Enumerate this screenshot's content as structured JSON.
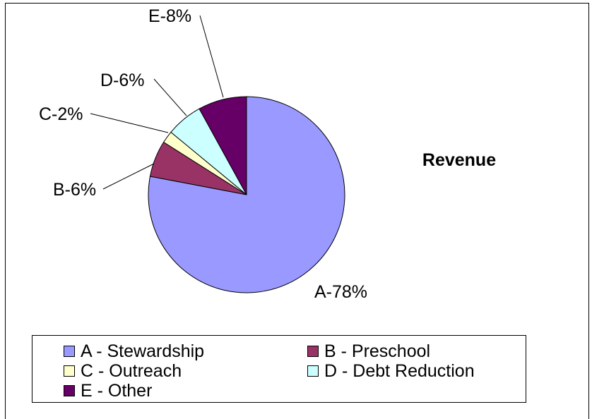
{
  "chart_data": {
    "type": "pie",
    "title": "Revenue",
    "slices": [
      {
        "key": "A",
        "label": "A-78%",
        "legend": "A - Stewardship",
        "value": 78,
        "color": "#9999ff"
      },
      {
        "key": "B",
        "label": "B-6%",
        "legend": "B - Preschool",
        "value": 6,
        "color": "#993366"
      },
      {
        "key": "C",
        "label": "C-2%",
        "legend": "C - Outreach",
        "value": 2,
        "color": "#ffffcc"
      },
      {
        "key": "D",
        "label": "D-6%",
        "legend": "D - Debt Reduction",
        "value": 6,
        "color": "#ccffff"
      },
      {
        "key": "E",
        "label": "E-8%",
        "legend": "E - Other",
        "value": 8,
        "color": "#660066"
      }
    ],
    "legend_position": "bottom"
  }
}
